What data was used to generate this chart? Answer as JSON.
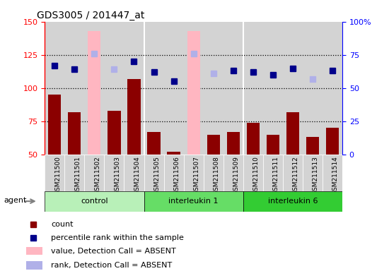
{
  "title": "GDS3005 / 201447_at",
  "samples": [
    "GSM211500",
    "GSM211501",
    "GSM211502",
    "GSM211503",
    "GSM211504",
    "GSM211505",
    "GSM211506",
    "GSM211507",
    "GSM211508",
    "GSM211509",
    "GSM211510",
    "GSM211511",
    "GSM211512",
    "GSM211513",
    "GSM211514"
  ],
  "count_values": [
    95,
    82,
    null,
    83,
    107,
    67,
    52,
    null,
    65,
    67,
    74,
    65,
    82,
    63,
    70
  ],
  "count_absent_values": [
    null,
    null,
    143,
    null,
    null,
    null,
    null,
    143,
    null,
    null,
    null,
    null,
    null,
    null,
    null
  ],
  "rank_values": [
    117,
    114,
    null,
    null,
    120,
    112,
    105,
    null,
    null,
    113,
    112,
    110,
    115,
    null,
    113
  ],
  "rank_absent_values": [
    null,
    null,
    126,
    114,
    null,
    null,
    null,
    126,
    111,
    null,
    null,
    null,
    null,
    107,
    null
  ],
  "ylim_left": [
    50,
    150
  ],
  "ylim_right": [
    0,
    100
  ],
  "yticks_left": [
    50,
    75,
    100,
    125,
    150
  ],
  "yticks_right": [
    0,
    25,
    50,
    75,
    100
  ],
  "bar_color_present": "#8b0000",
  "bar_color_absent": "#ffb6c1",
  "rank_color_present": "#00008b",
  "rank_color_absent": "#b0b0e8",
  "bg_color": "#d3d3d3",
  "group_defs": [
    {
      "start": 0,
      "end": 4,
      "name": "control",
      "color": "#b8f0b8"
    },
    {
      "start": 5,
      "end": 9,
      "name": "interleukin 1",
      "color": "#66dd66"
    },
    {
      "start": 10,
      "end": 14,
      "name": "interleukin 6",
      "color": "#33cc33"
    }
  ],
  "legend_items": [
    {
      "color": "#8b0000",
      "label": "count",
      "shape": "square"
    },
    {
      "color": "#00008b",
      "label": "percentile rank within the sample",
      "shape": "square"
    },
    {
      "color": "#ffb6c1",
      "label": "value, Detection Call = ABSENT",
      "shape": "rect"
    },
    {
      "color": "#b0b0e8",
      "label": "rank, Detection Call = ABSENT",
      "shape": "rect"
    }
  ]
}
